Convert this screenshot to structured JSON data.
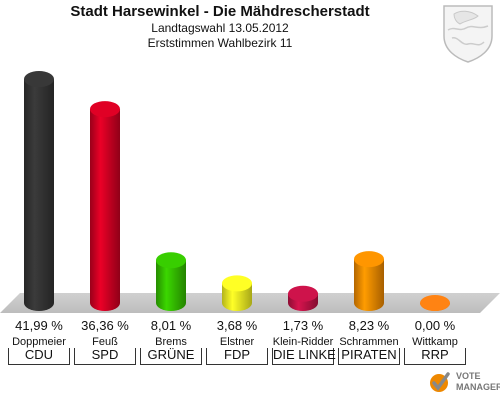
{
  "header": {
    "title": "Stadt Harsewinkel - Die Mähdrescherstadt",
    "subtitle1": "Landtagswahl 13.05.2012",
    "subtitle2": "Erststimmen Wahlbezirk 11"
  },
  "chart_data": {
    "type": "bar",
    "title": "Stadt Harsewinkel - Die Mähdrescherstadt",
    "categories": [
      "CDU",
      "SPD",
      "GRÜNE",
      "FDP",
      "DIE LINKE",
      "PIRATEN",
      "RRP"
    ],
    "candidates": [
      "Doppmeier",
      "Feuß",
      "Brems",
      "Elstner",
      "Klein-Ridder",
      "Schrammen",
      "Wittkamp"
    ],
    "values": [
      41.99,
      36.36,
      8.01,
      3.68,
      1.73,
      8.23,
      0.0
    ],
    "value_labels": [
      "41,99 %",
      "36,36 %",
      "8,01 %",
      "3,68 %",
      "1,73 %",
      "8,23 %",
      "0,00 %"
    ],
    "colors": [
      "#333333",
      "#cc0022",
      "#33bb00",
      "#eeee22",
      "#bb1144",
      "#ee8800",
      "#ee7711"
    ],
    "ylim": [
      0,
      45
    ]
  },
  "footer": {
    "brand_line1": "VOTE",
    "brand_line2": "MANAGER"
  }
}
